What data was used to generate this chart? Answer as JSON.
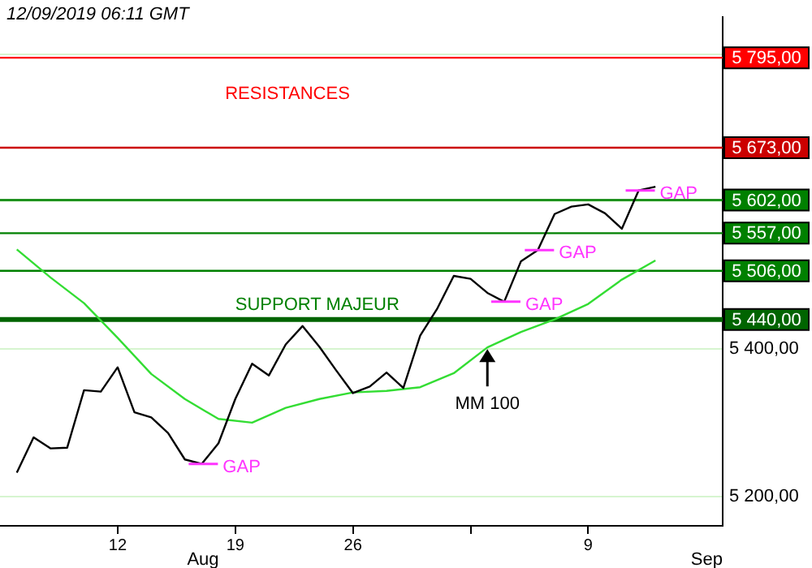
{
  "chart_data": {
    "type": "line",
    "x": [
      "2019-08-06",
      "2019-08-07",
      "2019-08-08",
      "2019-08-09",
      "2019-08-10",
      "2019-08-11",
      "2019-08-12",
      "2019-08-13",
      "2019-08-14",
      "2019-08-15",
      "2019-08-16",
      "2019-08-17",
      "2019-08-18",
      "2019-08-19",
      "2019-08-20",
      "2019-08-21",
      "2019-08-22",
      "2019-08-23",
      "2019-08-24",
      "2019-08-25",
      "2019-08-26",
      "2019-08-27",
      "2019-08-28",
      "2019-08-29",
      "2019-08-30",
      "2019-08-31",
      "2019-09-01",
      "2019-09-02",
      "2019-09-03",
      "2019-09-04",
      "2019-09-05",
      "2019-09-06",
      "2019-09-07",
      "2019-09-08",
      "2019-09-09",
      "2019-09-10",
      "2019-09-11",
      "2019-09-12",
      "2019-09-13"
    ],
    "series": [
      {
        "color": "#000000",
        "values": [
          5232,
          5280,
          5265,
          5266,
          5344,
          5342,
          5375,
          5314,
          5307,
          5286,
          5250,
          5244,
          5272,
          5332,
          5380,
          5364,
          5406,
          5431,
          5403,
          5371,
          5340,
          5349,
          5368,
          5347,
          5418,
          5454,
          5499,
          5495,
          5476,
          5464,
          5519,
          5534,
          5583,
          5593,
          5596,
          5584,
          5563,
          5615,
          5620
        ]
      },
      {
        "color": "#33dd33",
        "x": [
          "2019-08-06",
          "2019-08-08",
          "2019-08-10",
          "2019-08-12",
          "2019-08-14",
          "2019-08-16",
          "2019-08-18",
          "2019-08-20",
          "2019-08-22",
          "2019-08-24",
          "2019-08-26",
          "2019-08-28",
          "2019-08-30",
          "2019-09-01",
          "2019-09-03",
          "2019-09-05",
          "2019-09-07",
          "2019-09-09",
          "2019-09-11",
          "2019-09-13"
        ],
        "values": [
          5535,
          5497,
          5462,
          5415,
          5366,
          5332,
          5305,
          5300,
          5320,
          5332,
          5341,
          5343,
          5348,
          5367,
          5402,
          5423,
          5440,
          5461,
          5494,
          5520
        ]
      }
    ],
    "xlim": [
      "2019-08-05",
      "2019-09-17"
    ],
    "xticks": [
      {
        "value": "2019-08-12",
        "label": "12"
      },
      {
        "value": "2019-08-19",
        "label": "19"
      },
      {
        "value": "2019-08-26",
        "label": "26"
      },
      {
        "value": "2019-09-02",
        "label": null
      },
      {
        "value": "2019-09-09",
        "label": "9"
      }
    ],
    "ylim": [
      5160,
      5850
    ],
    "yticks": [
      {
        "value": 5200,
        "label": "5 200,00"
      },
      {
        "value": 5400,
        "label": "5 400,00"
      },
      {
        "value": 5600,
        "label": null
      },
      {
        "value": 5800,
        "label": null
      }
    ],
    "grid": "y",
    "legend": false,
    "marker": "none",
    "line_style": "solid",
    "ref_lines": [
      {
        "axis": "y",
        "value": 5795,
        "label": "5 795,00",
        "color": "#ff0000"
      },
      {
        "axis": "y",
        "value": 5673,
        "label": "5 673,00",
        "color": "#cc0000"
      },
      {
        "axis": "y",
        "value": 5602,
        "label": "5 602,00",
        "color": "#008000"
      },
      {
        "axis": "y",
        "value": 5557,
        "label": "5 557,00",
        "color": "#008000"
      },
      {
        "axis": "y",
        "value": 5506,
        "label": "5 506,00",
        "color": "#008000"
      },
      {
        "axis": "y",
        "value": 5440,
        "label": "5 440,00",
        "color": "#006400"
      }
    ],
    "annotations": [
      "12/09/2019 06:11 GMT",
      "RESISTANCES",
      {
        "text": "SUPPORT MAJEUR",
        "x": "2019-08-19",
        "y": 5440
      },
      {
        "text": "MM 100",
        "x": "2019-09-03",
        "y": 5402
      },
      {
        "text": "GAP",
        "x": "2019-08-17",
        "y": 5244
      },
      {
        "text": "GAP",
        "x": "2019-09-04",
        "y": 5464
      },
      {
        "text": "GAP",
        "x": "2019-09-06",
        "y": 5534
      },
      {
        "text": "GAP",
        "x": "2019-09-12",
        "y": 5615
      },
      "Aug",
      "Sep"
    ]
  }
}
